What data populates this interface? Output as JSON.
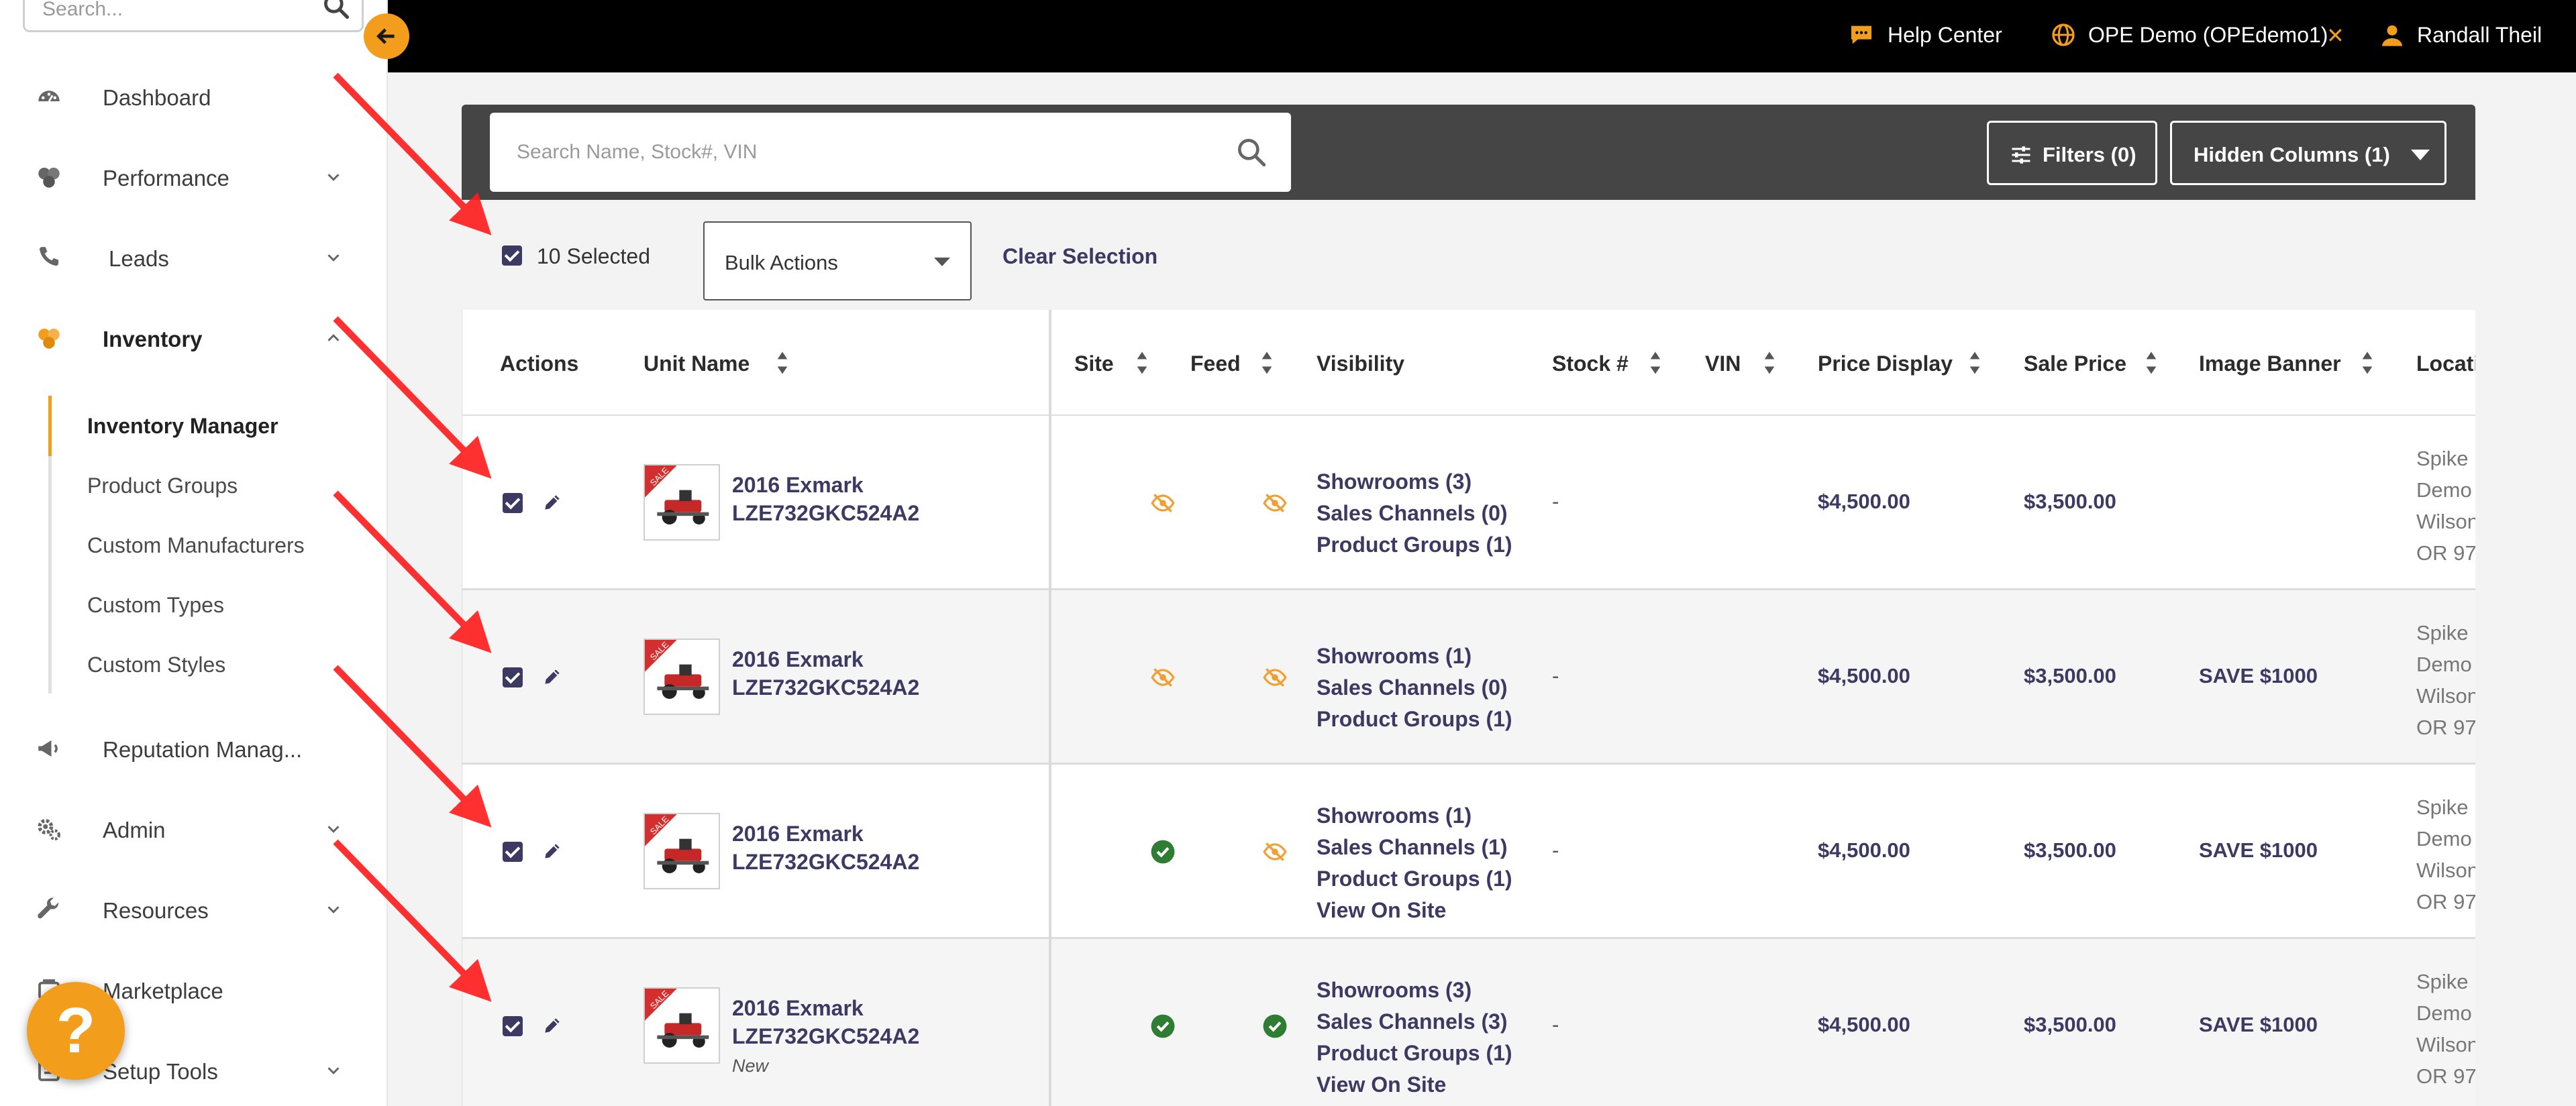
{
  "sidebar": {
    "search_placeholder": "Search...",
    "items": [
      {
        "label": "Dashboard"
      },
      {
        "label": "Performance"
      },
      {
        "label": "Leads"
      },
      {
        "label": "Inventory"
      },
      {
        "label": "Reputation Manag..."
      },
      {
        "label": "Admin"
      },
      {
        "label": "Resources"
      },
      {
        "label": "Marketplace"
      },
      {
        "label": "Setup Tools"
      }
    ],
    "subitems": [
      {
        "label": "Inventory Manager"
      },
      {
        "label": "Product Groups"
      },
      {
        "label": "Custom Manufacturers"
      },
      {
        "label": "Custom Types"
      },
      {
        "label": "Custom Styles"
      }
    ],
    "help_glyph": "?"
  },
  "topbar": {
    "help_center": "Help Center",
    "dealer": "OPE Demo (OPEdemo1)",
    "dealer_close": "✕",
    "user": "Randall Theil"
  },
  "toolbar": {
    "search_placeholder": "Search Name, Stock#, VIN",
    "filters_label": "Filters (0)",
    "hidden_columns_label": "Hidden Columns (1)"
  },
  "selection": {
    "selected_label": "10 Selected",
    "bulk_actions": "Bulk Actions",
    "clear_selection": "Clear Selection"
  },
  "table": {
    "headers": {
      "actions": "Actions",
      "unit_name": "Unit Name",
      "site": "Site",
      "feed": "Feed",
      "visibility": "Visibility",
      "stock": "Stock #",
      "vin": "VIN",
      "price_display": "Price Display",
      "sale_price": "Sale Price",
      "image_banner": "Image Banner",
      "location": "Locati"
    },
    "rows": [
      {
        "name_line1": "2016 Exmark",
        "name_line2": "LZE732GKC524A2",
        "condition": "",
        "site_status": "hidden",
        "feed_status": "hidden",
        "showrooms": "Showrooms (3)",
        "sales_channels": "Sales Channels (0)",
        "product_groups": "Product Groups (1)",
        "view_on_site": "",
        "stock": "-",
        "price_display": "$4,500.00",
        "sale_price": "$3,500.00",
        "image_banner": "",
        "loc1": "Spike (",
        "loc2": "Demo",
        "loc3": "Wilson",
        "loc4": "OR 97"
      },
      {
        "name_line1": "2016 Exmark",
        "name_line2": "LZE732GKC524A2",
        "condition": "",
        "site_status": "hidden",
        "feed_status": "hidden",
        "showrooms": "Showrooms (1)",
        "sales_channels": "Sales Channels (0)",
        "product_groups": "Product Groups (1)",
        "view_on_site": "",
        "stock": "-",
        "price_display": "$4,500.00",
        "sale_price": "$3,500.00",
        "image_banner": "SAVE $1000",
        "loc1": "Spike (",
        "loc2": "Demo",
        "loc3": "Wilson",
        "loc4": "OR 97"
      },
      {
        "name_line1": "2016 Exmark",
        "name_line2": "LZE732GKC524A2",
        "condition": "",
        "site_status": "visible",
        "feed_status": "hidden",
        "showrooms": "Showrooms (1)",
        "sales_channels": "Sales Channels (1)",
        "product_groups": "Product Groups (1)",
        "view_on_site": "View On Site",
        "stock": "-",
        "price_display": "$4,500.00",
        "sale_price": "$3,500.00",
        "image_banner": "SAVE $1000",
        "loc1": "Spike (",
        "loc2": "Demo",
        "loc3": "Wilson",
        "loc4": "OR 97"
      },
      {
        "name_line1": "2016 Exmark",
        "name_line2": "LZE732GKC524A2",
        "condition": "New",
        "site_status": "visible",
        "feed_status": "visible",
        "showrooms": "Showrooms (3)",
        "sales_channels": "Sales Channels (3)",
        "product_groups": "Product Groups (1)",
        "view_on_site": "View On Site",
        "stock": "-",
        "price_display": "$4,500.00",
        "sale_price": "$3,500.00",
        "image_banner": "SAVE $1000",
        "loc1": "Spike (",
        "loc2": "Demo",
        "loc3": "Wilson",
        "loc4": "OR 97"
      }
    ]
  },
  "thumbnail_banner": "SALE",
  "colors": {
    "accent": "#f29d1b",
    "link": "#3c3a63",
    "topbar": "#000000",
    "toolbar": "#454545",
    "status_ok": "#2e7d32",
    "status_hidden": "#f0a030",
    "annotation": "#ff1a1a"
  },
  "icons": {
    "dashboard": "dashboard-icon",
    "performance": "performance-icon",
    "leads": "phone-icon",
    "inventory": "inventory-icon",
    "reputation": "megaphone-icon",
    "admin": "gears-icon",
    "resources": "wrench-icon",
    "marketplace": "marketplace-icon",
    "setup": "setup-icon"
  }
}
